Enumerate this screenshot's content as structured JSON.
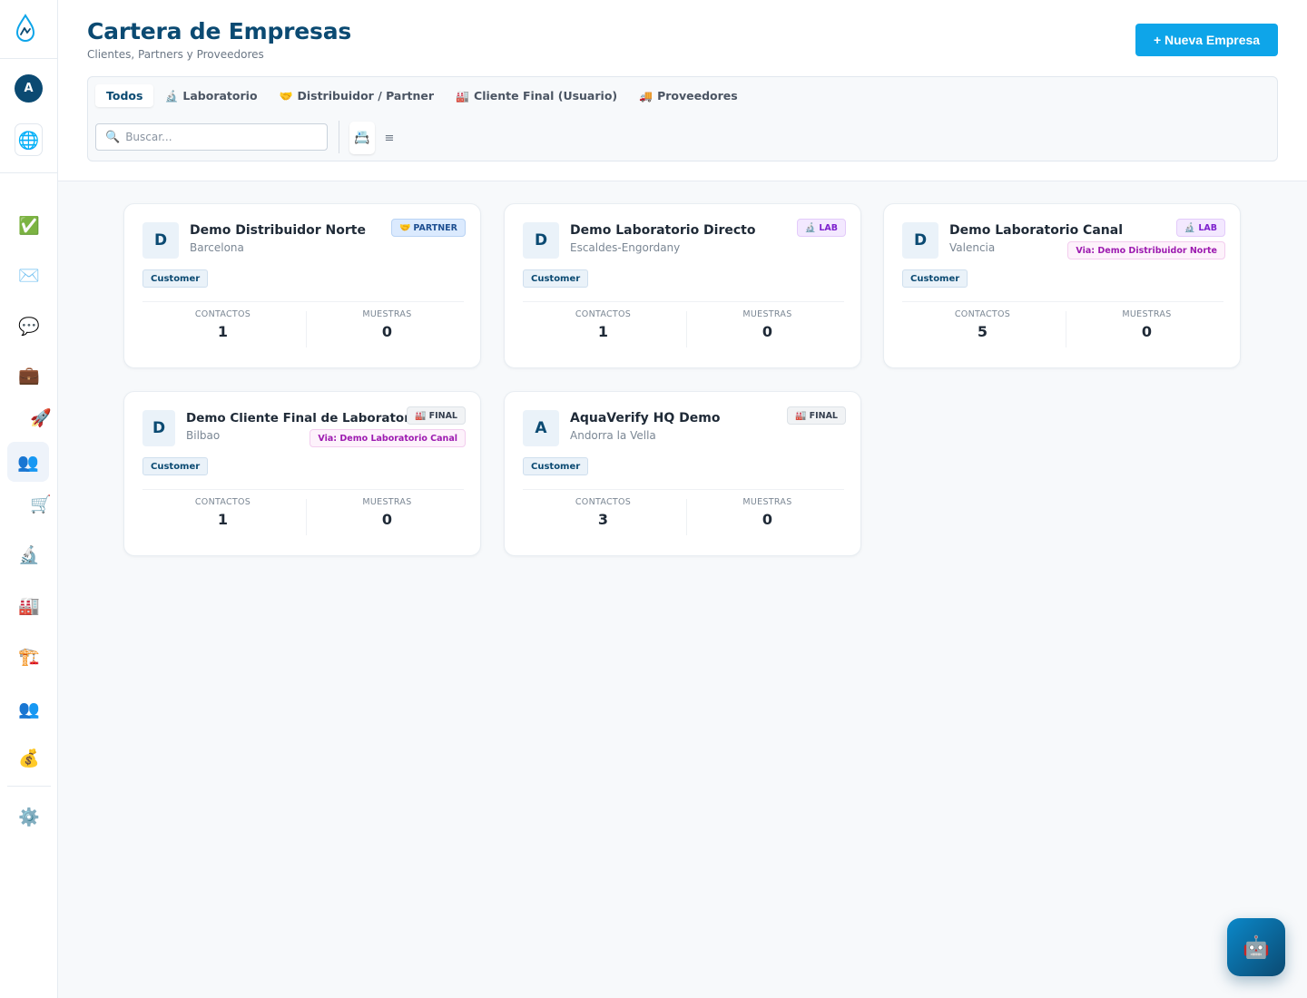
{
  "header": {
    "title": "Cartera de Empresas",
    "subtitle": "Clientes, Partners y Proveedores",
    "new_button": "+ Nueva Empresa"
  },
  "user": {
    "initial": "A"
  },
  "sidebar": {
    "icons": {
      "globe": "🌐",
      "items": [
        "✅",
        "✉️",
        "💬",
        "💼",
        "🚀",
        "👥",
        "🛒",
        "🔬",
        "🏭",
        "🏗️",
        "👥",
        "💰",
        "⚙️"
      ]
    }
  },
  "tabs": [
    {
      "label": "Todos",
      "icon": ""
    },
    {
      "label": "Laboratorio",
      "icon": "🔬"
    },
    {
      "label": "Distribuidor / Partner",
      "icon": "🤝"
    },
    {
      "label": "Cliente Final (Usuario)",
      "icon": "🏭"
    },
    {
      "label": "Proveedores",
      "icon": "🚚"
    }
  ],
  "search": {
    "placeholder": "Buscar...",
    "value": "",
    "icon": "🔍"
  },
  "view_toggle": {
    "grid_icon": "📇",
    "list_icon": "≡"
  },
  "stat_labels": {
    "contacts": "CONTACTOS",
    "samples": "MUESTRAS"
  },
  "cards": [
    {
      "initial": "D",
      "name": "Demo Distribuidor Norte",
      "city": "Barcelona",
      "type_icon": "🤝",
      "type": "PARTNER",
      "via": "",
      "tag": "Customer",
      "contacts": "1",
      "samples": "0"
    },
    {
      "initial": "D",
      "name": "Demo Laboratorio Directo",
      "city": "Escaldes-Engordany",
      "type_icon": "🔬",
      "type": "LAB",
      "via": "",
      "tag": "Customer",
      "contacts": "1",
      "samples": "0"
    },
    {
      "initial": "D",
      "name": "Demo Laboratorio Canal",
      "city": "Valencia",
      "type_icon": "🔬",
      "type": "LAB",
      "via": "Via: Demo Distribuidor Norte",
      "tag": "Customer",
      "contacts": "5",
      "samples": "0"
    },
    {
      "initial": "D",
      "name": "Demo Cliente Final de Laboratorio",
      "city": "Bilbao",
      "type_icon": "🏭",
      "type": "FINAL",
      "via": "Via: Demo Laboratorio Canal",
      "tag": "Customer",
      "contacts": "1",
      "samples": "0"
    },
    {
      "initial": "A",
      "name": "AquaVerify HQ Demo",
      "city": "Andorra la Vella",
      "type_icon": "🏭",
      "type": "FINAL",
      "via": "",
      "tag": "Customer",
      "contacts": "3",
      "samples": "0"
    }
  ],
  "bot": {
    "icon": "🤖"
  }
}
